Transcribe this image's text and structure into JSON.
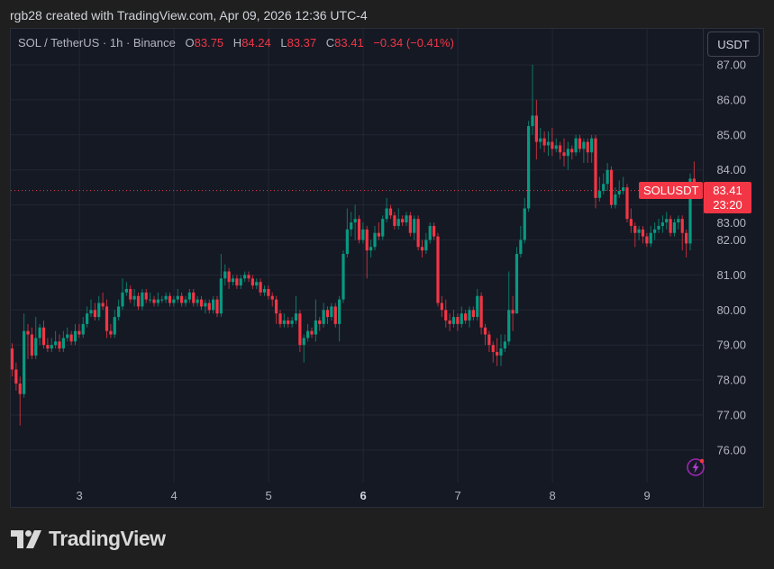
{
  "credit": "rgb28 created with TradingView.com, Apr 09, 2026 12:36 UTC-4",
  "legend": {
    "symbol": "SOL / TetherUS · 1h · Binance",
    "open_label": "O",
    "open": "83.75",
    "high_label": "H",
    "high": "84.24",
    "low_label": "L",
    "low": "83.37",
    "close_label": "C",
    "close": "83.41",
    "change": "−0.34 (−0.41%)"
  },
  "currency_button": "USDT",
  "symbol_tag": "SOLUSDT",
  "last_price": "83.41",
  "countdown": "23:20",
  "logo_text": "TradingView",
  "icons": {
    "bolt": "lightning-icon",
    "logo": "tradingview-logo-icon"
  },
  "colors": {
    "up": "#089981",
    "down": "#f23645",
    "background": "#151924",
    "grid": "#232734",
    "accent_icon": "#9c27b0"
  },
  "chart_data": {
    "type": "candlestick",
    "interval": "1h",
    "ylim": [
      75.3,
      87.3
    ],
    "yticks": [
      "76.00",
      "77.00",
      "78.00",
      "79.00",
      "80.00",
      "81.00",
      "82.00",
      "83.00",
      "84.00",
      "85.00",
      "86.00",
      "87.00"
    ],
    "xticks": [
      {
        "label": "3",
        "bold": false
      },
      {
        "label": "4",
        "bold": false
      },
      {
        "label": "5",
        "bold": false
      },
      {
        "label": "6",
        "bold": true
      },
      {
        "label": "7",
        "bold": false
      },
      {
        "label": "8",
        "bold": false
      },
      {
        "label": "9",
        "bold": false
      }
    ],
    "grid": true,
    "last_price_line": 83.41,
    "candles": [
      [
        78.9,
        79.05,
        78.1,
        78.3
      ],
      [
        78.3,
        78.5,
        77.7,
        77.9
      ],
      [
        77.9,
        78.1,
        76.7,
        77.6
      ],
      [
        77.6,
        79.9,
        77.5,
        79.4
      ],
      [
        79.4,
        79.6,
        78.6,
        79.3
      ],
      [
        79.3,
        79.5,
        78.6,
        78.7
      ],
      [
        78.7,
        79.8,
        78.6,
        79.2
      ],
      [
        79.2,
        79.6,
        79.0,
        79.5
      ],
      [
        79.5,
        79.7,
        78.9,
        79.0
      ],
      [
        79.0,
        79.2,
        78.8,
        78.9
      ],
      [
        78.9,
        79.2,
        78.8,
        79.0
      ],
      [
        79.0,
        79.4,
        78.9,
        79.1
      ],
      [
        79.1,
        79.3,
        78.8,
        78.9
      ],
      [
        78.9,
        79.4,
        78.8,
        79.2
      ],
      [
        79.2,
        79.5,
        79.1,
        79.3
      ],
      [
        79.3,
        79.4,
        79.0,
        79.1
      ],
      [
        79.1,
        79.6,
        79.0,
        79.4
      ],
      [
        79.4,
        79.6,
        79.2,
        79.3
      ],
      [
        79.3,
        79.8,
        79.2,
        79.6
      ],
      [
        79.6,
        80.1,
        79.5,
        79.9
      ],
      [
        79.9,
        80.3,
        79.8,
        80.0
      ],
      [
        80.0,
        80.2,
        79.7,
        79.8
      ],
      [
        79.8,
        80.4,
        79.7,
        80.2
      ],
      [
        80.2,
        80.5,
        80.0,
        80.1
      ],
      [
        80.1,
        80.3,
        79.2,
        79.4
      ],
      [
        79.4,
        79.6,
        79.2,
        79.3
      ],
      [
        79.3,
        80.0,
        79.2,
        79.8
      ],
      [
        79.8,
        80.3,
        79.7,
        80.1
      ],
      [
        80.1,
        80.9,
        80.0,
        80.5
      ],
      [
        80.5,
        80.8,
        80.4,
        80.6
      ],
      [
        80.6,
        80.7,
        80.2,
        80.3
      ],
      [
        80.3,
        80.6,
        80.1,
        80.4
      ],
      [
        80.4,
        80.5,
        80.0,
        80.1
      ],
      [
        80.1,
        80.6,
        80.0,
        80.5
      ],
      [
        80.5,
        80.6,
        80.2,
        80.3
      ],
      [
        80.3,
        80.5,
        80.2,
        80.3
      ],
      [
        80.3,
        80.4,
        80.1,
        80.2
      ],
      [
        80.2,
        80.5,
        80.1,
        80.3
      ],
      [
        80.3,
        80.4,
        80.2,
        80.3
      ],
      [
        80.3,
        80.5,
        80.2,
        80.4
      ],
      [
        80.4,
        80.5,
        80.1,
        80.2
      ],
      [
        80.2,
        80.4,
        80.1,
        80.3
      ],
      [
        80.3,
        80.6,
        80.2,
        80.4
      ],
      [
        80.4,
        80.5,
        80.1,
        80.2
      ],
      [
        80.2,
        80.4,
        80.1,
        80.3
      ],
      [
        80.3,
        80.6,
        80.2,
        80.5
      ],
      [
        80.5,
        80.6,
        80.1,
        80.2
      ],
      [
        80.2,
        80.4,
        80.1,
        80.3
      ],
      [
        80.3,
        80.4,
        80.0,
        80.1
      ],
      [
        80.1,
        80.3,
        79.9,
        80.2
      ],
      [
        80.2,
        80.3,
        79.9,
        80.0
      ],
      [
        80.0,
        80.4,
        79.9,
        80.3
      ],
      [
        80.3,
        80.4,
        79.8,
        79.9
      ],
      [
        79.9,
        81.6,
        79.8,
        80.9
      ],
      [
        80.9,
        81.3,
        80.7,
        81.1
      ],
      [
        81.1,
        81.2,
        80.6,
        80.8
      ],
      [
        80.8,
        81.0,
        80.7,
        80.9
      ],
      [
        80.9,
        81.0,
        80.6,
        80.7
      ],
      [
        80.7,
        81.0,
        80.6,
        80.9
      ],
      [
        80.9,
        81.1,
        80.8,
        81.0
      ],
      [
        81.0,
        81.1,
        80.8,
        80.9
      ],
      [
        80.9,
        81.0,
        80.6,
        80.7
      ],
      [
        80.7,
        80.9,
        80.6,
        80.8
      ],
      [
        80.8,
        80.9,
        80.4,
        80.5
      ],
      [
        80.5,
        80.7,
        80.4,
        80.6
      ],
      [
        80.6,
        80.7,
        80.3,
        80.4
      ],
      [
        80.4,
        80.5,
        80.1,
        80.3
      ],
      [
        80.3,
        80.4,
        79.6,
        79.9
      ],
      [
        79.9,
        80.0,
        79.5,
        79.6
      ],
      [
        79.6,
        79.9,
        79.5,
        79.7
      ],
      [
        79.7,
        79.8,
        79.5,
        79.6
      ],
      [
        79.6,
        79.8,
        79.5,
        79.7
      ],
      [
        79.7,
        80.4,
        79.6,
        79.9
      ],
      [
        79.9,
        80.0,
        78.8,
        79.0
      ],
      [
        79.0,
        79.3,
        78.5,
        79.2
      ],
      [
        79.2,
        79.6,
        79.1,
        79.4
      ],
      [
        79.4,
        79.5,
        79.2,
        79.3
      ],
      [
        79.3,
        80.3,
        79.1,
        79.7
      ],
      [
        79.7,
        79.8,
        79.4,
        79.6
      ],
      [
        79.6,
        80.2,
        79.5,
        80.0
      ],
      [
        80.0,
        80.1,
        79.6,
        79.8
      ],
      [
        79.8,
        80.2,
        79.7,
        80.1
      ],
      [
        80.1,
        80.2,
        79.5,
        79.6
      ],
      [
        79.6,
        80.4,
        79.1,
        80.3
      ],
      [
        80.3,
        81.7,
        80.2,
        81.6
      ],
      [
        81.6,
        82.9,
        81.5,
        82.3
      ],
      [
        82.3,
        82.8,
        82.1,
        82.5
      ],
      [
        82.5,
        83.0,
        82.0,
        82.6
      ],
      [
        82.6,
        82.7,
        81.9,
        82.0
      ],
      [
        82.0,
        82.5,
        81.9,
        82.3
      ],
      [
        82.3,
        82.4,
        80.9,
        81.7
      ],
      [
        81.7,
        82.0,
        81.5,
        81.8
      ],
      [
        81.8,
        82.4,
        81.7,
        82.2
      ],
      [
        82.2,
        82.5,
        82.0,
        82.1
      ],
      [
        82.1,
        82.7,
        82.0,
        82.6
      ],
      [
        82.6,
        83.2,
        82.5,
        82.9
      ],
      [
        82.9,
        83.0,
        82.6,
        82.7
      ],
      [
        82.7,
        82.8,
        82.3,
        82.4
      ],
      [
        82.4,
        82.9,
        82.3,
        82.6
      ],
      [
        82.6,
        82.7,
        82.4,
        82.5
      ],
      [
        82.5,
        82.8,
        82.4,
        82.7
      ],
      [
        82.7,
        82.8,
        82.1,
        82.2
      ],
      [
        82.2,
        82.7,
        82.0,
        82.6
      ],
      [
        82.6,
        82.7,
        81.7,
        81.8
      ],
      [
        81.8,
        82.0,
        81.5,
        81.7
      ],
      [
        81.7,
        82.2,
        81.6,
        82.0
      ],
      [
        82.0,
        82.5,
        81.9,
        82.4
      ],
      [
        82.4,
        82.5,
        82.0,
        82.1
      ],
      [
        82.1,
        82.2,
        80.1,
        80.2
      ],
      [
        80.2,
        80.4,
        79.8,
        80.0
      ],
      [
        80.0,
        80.3,
        79.5,
        79.7
      ],
      [
        79.7,
        79.9,
        79.4,
        79.6
      ],
      [
        79.6,
        80.0,
        79.5,
        79.8
      ],
      [
        79.8,
        79.9,
        79.4,
        79.6
      ],
      [
        79.6,
        80.1,
        79.5,
        79.9
      ],
      [
        79.9,
        80.0,
        79.6,
        79.7
      ],
      [
        79.7,
        80.1,
        79.5,
        80.0
      ],
      [
        80.0,
        80.1,
        79.7,
        79.8
      ],
      [
        79.8,
        80.6,
        79.7,
        80.4
      ],
      [
        80.4,
        80.5,
        79.3,
        79.5
      ],
      [
        79.5,
        79.6,
        79.0,
        79.3
      ],
      [
        79.3,
        79.4,
        78.8,
        79.0
      ],
      [
        79.0,
        79.1,
        78.5,
        78.8
      ],
      [
        78.8,
        79.2,
        78.4,
        78.7
      ],
      [
        78.7,
        79.3,
        78.4,
        78.9
      ],
      [
        78.9,
        79.3,
        78.8,
        79.1
      ],
      [
        79.1,
        81.1,
        79.0,
        80.0
      ],
      [
        80.0,
        80.4,
        79.4,
        79.9
      ],
      [
        79.9,
        81.8,
        79.9,
        81.6
      ],
      [
        81.6,
        82.4,
        81.5,
        82.0
      ],
      [
        82.0,
        83.2,
        81.9,
        82.9
      ],
      [
        82.9,
        85.4,
        82.8,
        85.25
      ],
      [
        85.25,
        87.0,
        85.0,
        85.55
      ],
      [
        85.55,
        86.0,
        84.3,
        84.8
      ],
      [
        84.8,
        85.2,
        84.6,
        84.9
      ],
      [
        84.9,
        85.1,
        84.5,
        84.7
      ],
      [
        84.7,
        85.1,
        84.4,
        84.8
      ],
      [
        84.8,
        85.2,
        84.4,
        84.6
      ],
      [
        84.6,
        84.9,
        84.5,
        84.7
      ],
      [
        84.7,
        84.8,
        84.3,
        84.5
      ],
      [
        84.5,
        84.9,
        84.1,
        84.4
      ],
      [
        84.4,
        84.8,
        84.0,
        84.6
      ],
      [
        84.6,
        84.7,
        84.3,
        84.5
      ],
      [
        84.5,
        85.0,
        84.4,
        84.9
      ],
      [
        84.9,
        85.0,
        84.5,
        84.6
      ],
      [
        84.6,
        84.9,
        84.2,
        84.8
      ],
      [
        84.8,
        84.9,
        84.2,
        84.5
      ],
      [
        84.5,
        85.0,
        84.2,
        84.9
      ],
      [
        84.9,
        85.0,
        82.9,
        83.2
      ],
      [
        83.2,
        83.8,
        83.1,
        83.4
      ],
      [
        83.4,
        83.9,
        83.3,
        83.6
      ],
      [
        83.6,
        84.2,
        83.4,
        84.0
      ],
      [
        84.0,
        84.1,
        82.9,
        83.0
      ],
      [
        83.0,
        83.5,
        82.9,
        83.3
      ],
      [
        83.3,
        83.7,
        83.2,
        83.4
      ],
      [
        83.4,
        83.8,
        83.3,
        83.5
      ],
      [
        83.5,
        83.6,
        82.5,
        82.6
      ],
      [
        82.6,
        82.9,
        82.2,
        82.4
      ],
      [
        82.4,
        82.5,
        81.8,
        82.2
      ],
      [
        82.2,
        82.4,
        82.0,
        82.3
      ],
      [
        82.3,
        82.4,
        81.9,
        82.1
      ],
      [
        82.1,
        82.2,
        81.8,
        81.9
      ],
      [
        81.9,
        82.4,
        81.8,
        82.2
      ],
      [
        82.2,
        82.5,
        82.0,
        82.3
      ],
      [
        82.3,
        82.6,
        82.2,
        82.4
      ],
      [
        82.4,
        82.7,
        82.2,
        82.5
      ],
      [
        82.5,
        82.8,
        82.3,
        82.6
      ],
      [
        82.6,
        82.7,
        82.1,
        82.2
      ],
      [
        82.2,
        82.6,
        82.1,
        82.5
      ],
      [
        82.5,
        82.7,
        82.3,
        82.6
      ],
      [
        82.6,
        82.7,
        81.7,
        82.2
      ],
      [
        82.2,
        82.3,
        81.5,
        81.9
      ],
      [
        81.9,
        83.9,
        81.7,
        83.75
      ],
      [
        83.75,
        84.24,
        83.37,
        83.41
      ]
    ]
  }
}
